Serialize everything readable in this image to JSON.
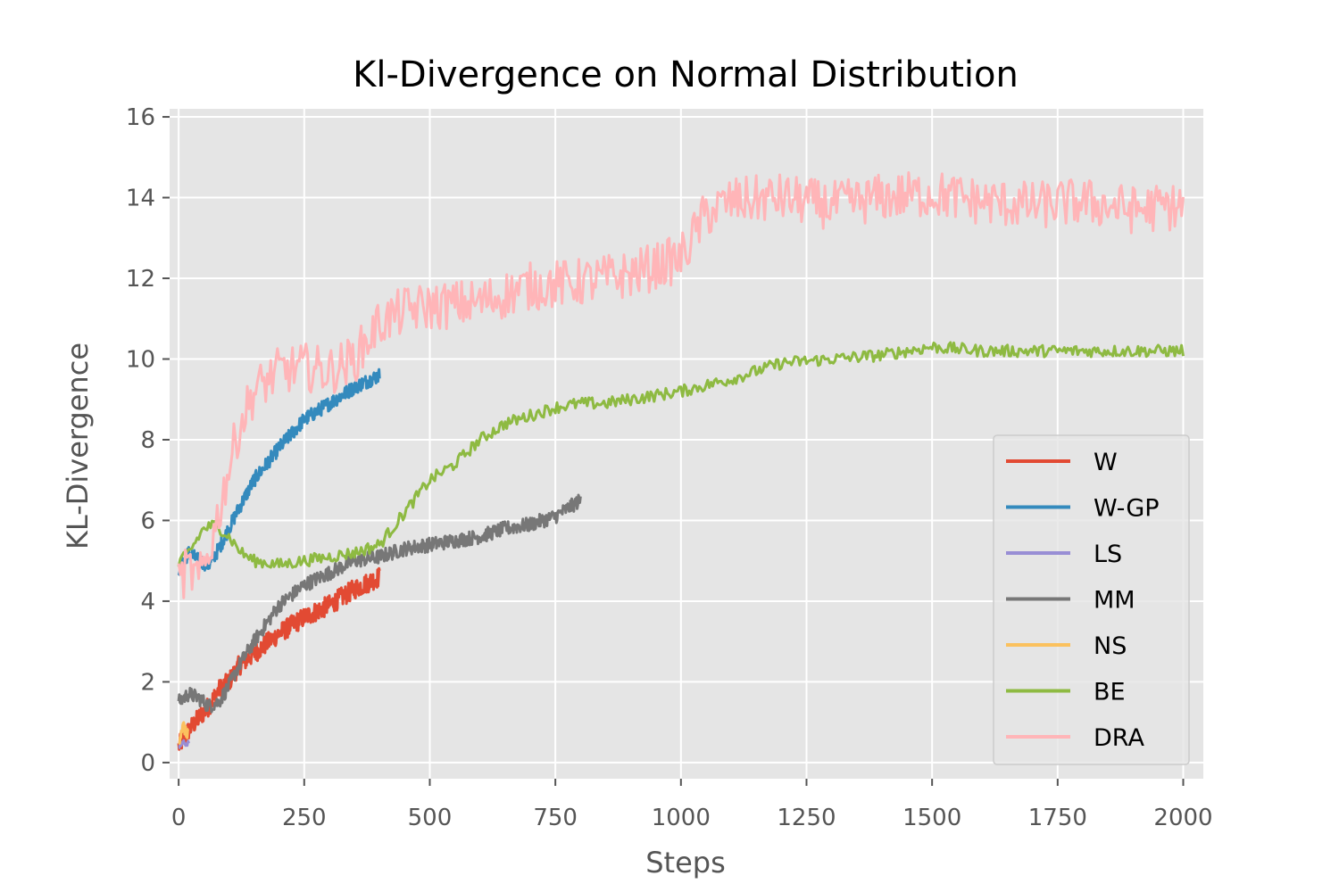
{
  "chart_data": {
    "type": "line",
    "title": "Kl-Divergence on Normal Distribution",
    "xlabel": "Steps",
    "ylabel": "KL-Divergence",
    "xlim": [
      -18,
      2040
    ],
    "ylim": [
      -0.4,
      16.2
    ],
    "xticks": [
      0,
      250,
      500,
      750,
      1000,
      1250,
      1500,
      1750,
      2000
    ],
    "xtick_labels": [
      "0",
      "250",
      "500",
      "750",
      "1000",
      "1250",
      "1500",
      "1750",
      "2000"
    ],
    "yticks": [
      0,
      2,
      4,
      6,
      8,
      10,
      12,
      14,
      16
    ],
    "ytick_labels": [
      "0",
      "2",
      "4",
      "6",
      "8",
      "10",
      "12",
      "14",
      "16"
    ],
    "grid": true,
    "legend_position": "lower-right",
    "series": [
      {
        "name": "W",
        "color": "#E24A33",
        "noise": 0.25,
        "x": [
          0,
          10,
          20,
          40,
          60,
          80,
          100,
          120,
          150,
          200,
          250,
          300,
          350,
          400
        ],
        "y": [
          0.4,
          0.6,
          0.8,
          1.1,
          1.4,
          1.8,
          2.0,
          2.4,
          2.7,
          3.2,
          3.6,
          3.9,
          4.3,
          4.6
        ]
      },
      {
        "name": "W-GP",
        "color": "#348ABD",
        "noise": 0.18,
        "x": [
          0,
          20,
          40,
          60,
          80,
          100,
          120,
          150,
          200,
          250,
          300,
          350,
          400
        ],
        "y": [
          4.8,
          5.2,
          5.0,
          4.9,
          5.3,
          5.8,
          6.3,
          7.0,
          7.8,
          8.5,
          8.9,
          9.3,
          9.6
        ]
      },
      {
        "name": "LS",
        "color": "#988ED5",
        "noise": 0.05,
        "x": [
          0,
          5,
          10,
          15,
          20
        ],
        "y": [
          0.4,
          0.45,
          0.5,
          0.45,
          0.5
        ]
      },
      {
        "name": "MM",
        "color": "#777777",
        "noise": 0.18,
        "x": [
          0,
          20,
          40,
          60,
          80,
          100,
          120,
          150,
          200,
          250,
          300,
          350,
          400,
          450,
          500,
          550,
          600,
          650,
          700,
          750,
          800
        ],
        "y": [
          1.5,
          1.7,
          1.6,
          1.4,
          1.5,
          1.9,
          2.4,
          3.0,
          3.9,
          4.4,
          4.7,
          5.0,
          5.1,
          5.3,
          5.4,
          5.5,
          5.6,
          5.8,
          5.9,
          6.1,
          6.5
        ]
      },
      {
        "name": "NS",
        "color": "#FBC15E",
        "noise": 0.15,
        "x": [
          0,
          5,
          10,
          15,
          20
        ],
        "y": [
          0.5,
          0.8,
          0.9,
          0.7,
          0.8
        ]
      },
      {
        "name": "BE",
        "color": "#8EBA42",
        "noise": 0.15,
        "x": [
          0,
          25,
          50,
          75,
          100,
          125,
          150,
          200,
          250,
          300,
          350,
          400,
          450,
          500,
          550,
          600,
          650,
          700,
          750,
          800,
          850,
          900,
          950,
          1000,
          1100,
          1200,
          1300,
          1400,
          1500,
          1600,
          1700,
          1800,
          1900,
          2000
        ],
        "y": [
          4.9,
          5.3,
          5.8,
          5.9,
          5.6,
          5.2,
          5.0,
          4.9,
          5.0,
          5.1,
          5.2,
          5.4,
          6.2,
          7.0,
          7.4,
          8.0,
          8.4,
          8.6,
          8.8,
          8.9,
          8.9,
          9.0,
          9.1,
          9.2,
          9.5,
          9.9,
          10.0,
          10.1,
          10.3,
          10.2,
          10.2,
          10.2,
          10.2,
          10.2
        ]
      },
      {
        "name": "DRA",
        "color": "#FFB5B8",
        "noise": 0.6,
        "x": [
          0,
          20,
          40,
          60,
          80,
          100,
          120,
          150,
          200,
          250,
          300,
          350,
          400,
          450,
          500,
          600,
          700,
          800,
          900,
          1000,
          1050,
          1100,
          1200,
          1300,
          1400,
          1500,
          1600,
          1700,
          1800,
          1900,
          2000
        ],
        "y": [
          4.5,
          4.8,
          4.5,
          5.2,
          6.2,
          7.3,
          8.3,
          9.2,
          9.7,
          9.8,
          9.7,
          10.0,
          10.9,
          11.2,
          11.3,
          11.4,
          11.8,
          11.9,
          12.1,
          12.5,
          13.6,
          13.9,
          14.0,
          13.8,
          14.0,
          14.1,
          13.9,
          13.8,
          13.9,
          13.7,
          13.8
        ]
      }
    ]
  }
}
